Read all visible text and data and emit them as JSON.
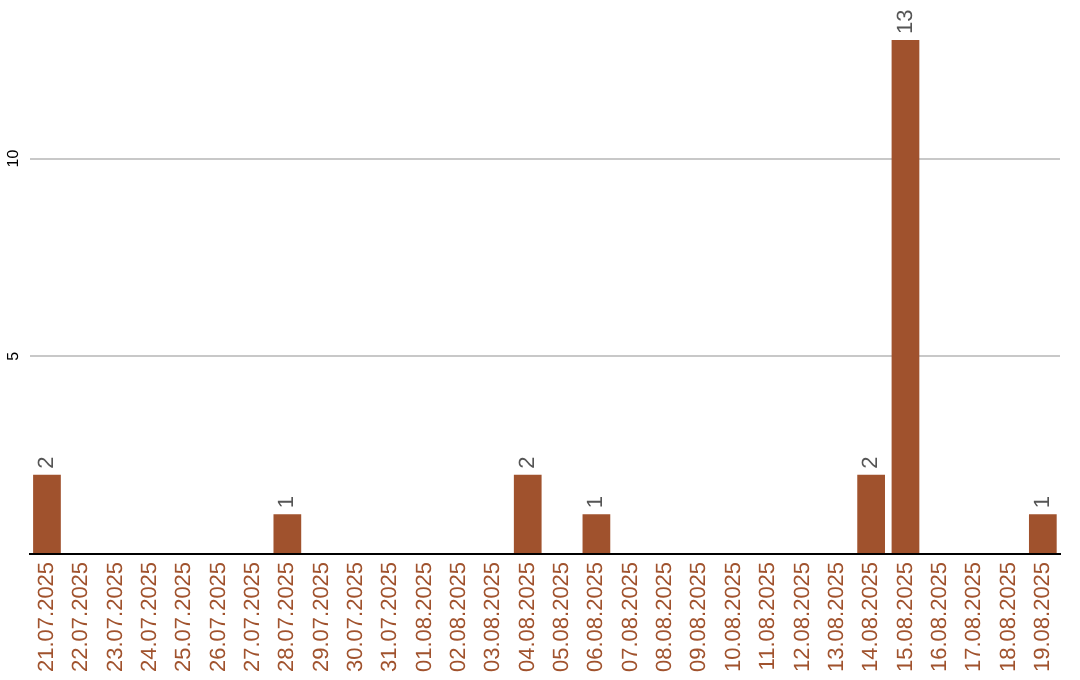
{
  "chart_data": {
    "type": "bar",
    "categories": [
      "21.07.2025",
      "22.07.2025",
      "23.07.2025",
      "24.07.2025",
      "25.07.2025",
      "26.07.2025",
      "27.07.2025",
      "28.07.2025",
      "29.07.2025",
      "30.07.2025",
      "31.07.2025",
      "01.08.2025",
      "02.08.2025",
      "03.08.2025",
      "04.08.2025",
      "05.08.2025",
      "06.08.2025",
      "07.08.2025",
      "08.08.2025",
      "09.08.2025",
      "10.08.2025",
      "11.08.2025",
      "12.08.2025",
      "13.08.2025",
      "14.08.2025",
      "15.08.2025",
      "16.08.2025",
      "17.08.2025",
      "18.08.2025",
      "19.08.2025"
    ],
    "values": [
      2,
      0,
      0,
      0,
      0,
      0,
      0,
      1,
      0,
      0,
      0,
      0,
      0,
      0,
      2,
      0,
      1,
      0,
      0,
      0,
      0,
      0,
      0,
      0,
      2,
      13,
      0,
      0,
      0,
      1
    ],
    "value_labels": [
      "2",
      null,
      null,
      null,
      null,
      null,
      null,
      "1",
      null,
      null,
      null,
      null,
      null,
      null,
      "2",
      null,
      "1",
      null,
      null,
      null,
      null,
      null,
      null,
      null,
      "2",
      "13",
      null,
      null,
      null,
      "1"
    ],
    "color": "#a0522d",
    "ylim": [
      0,
      13
    ],
    "yticks": [
      {
        "value": 0,
        "label": null
      },
      5,
      10
    ],
    "grid": "y",
    "legend": false
  }
}
